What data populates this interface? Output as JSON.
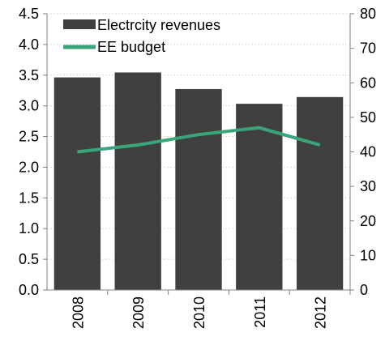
{
  "chart_data": {
    "type": "bar",
    "categories": [
      "2008",
      "2009",
      "2010",
      "2011",
      "2012"
    ],
    "series": [
      {
        "name": "Electrcity revenues",
        "type": "bar",
        "axis": "left",
        "values": [
          3.47,
          3.55,
          3.28,
          3.04,
          3.15
        ],
        "color": "#404040"
      },
      {
        "name": "EE budget",
        "type": "line",
        "axis": "right",
        "values": [
          40,
          42,
          45,
          47,
          42
        ],
        "color": "#3aa57a"
      }
    ],
    "y_left": {
      "lim": [
        0,
        4.5
      ],
      "ticks": [
        "0.0",
        "0.5",
        "1.0",
        "1.5",
        "2.0",
        "2.5",
        "3.0",
        "3.5",
        "4.0",
        "4.5"
      ]
    },
    "y_right": {
      "lim": [
        0,
        80
      ],
      "ticks": [
        "0",
        "10",
        "20",
        "30",
        "40",
        "50",
        "60",
        "70",
        "80"
      ]
    },
    "grid": "horizontal",
    "legend_position": "top-left",
    "title": "",
    "xlabel": "",
    "ylabel": ""
  }
}
